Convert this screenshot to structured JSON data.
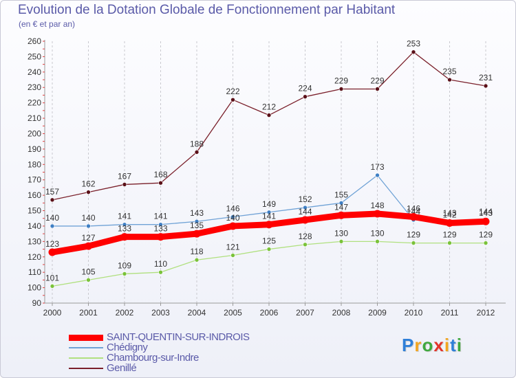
{
  "title": "Evolution de la Dotation Globale de Fonctionnement par Habitant",
  "subtitle": "(en € et par an)",
  "logo": {
    "text": "Proxiti",
    "letter_colors": [
      "#2f7fd8",
      "#f2a51f",
      "#3fa83f",
      "#e2342a",
      "#f2a51f",
      "#2f7fd8",
      "#3fa83f"
    ]
  },
  "chart_data": {
    "type": "line",
    "title": "Evolution de la Dotation Globale de Fonctionnement par Habitant",
    "subtitle": "(en € et par an)",
    "xlabel": "",
    "ylabel": "",
    "x": [
      "2000",
      "2001",
      "2002",
      "2003",
      "2004",
      "2005",
      "2006",
      "2007",
      "2008",
      "2009",
      "2010",
      "2011",
      "2012"
    ],
    "ylim": [
      90,
      260
    ],
    "yticks": [
      90,
      100,
      110,
      120,
      130,
      140,
      150,
      160,
      170,
      180,
      190,
      200,
      210,
      220,
      230,
      240,
      250,
      260
    ],
    "grid": "vertical dashed",
    "legend_position": "bottom-left",
    "series": [
      {
        "name": "Genillé",
        "color": "#7a1f2a",
        "marker": "#5a1018",
        "weight": "thin",
        "values": [
          157,
          162,
          167,
          168,
          188,
          222,
          212,
          224,
          229,
          229,
          253,
          235,
          231
        ]
      },
      {
        "name": "Chédigny",
        "color": "#6fa2d6",
        "marker": "#3f7fc4",
        "weight": "thin",
        "values": [
          140,
          140,
          141,
          141,
          143,
          146,
          149,
          152,
          155,
          173,
          144,
          143,
          144
        ]
      },
      {
        "name": "Chambourg-sur-Indre",
        "color": "#b0e07e",
        "marker": "#7ac23a",
        "weight": "thin",
        "values": [
          101,
          105,
          109,
          110,
          118,
          121,
          125,
          128,
          130,
          130,
          129,
          129,
          129
        ]
      },
      {
        "name": "SAINT-QUENTIN-SUR-INDROIS",
        "color": "#ff0000",
        "marker": "#ff0000",
        "weight": "thick",
        "values": [
          123,
          127,
          133,
          133,
          135,
          140,
          141,
          144,
          147,
          148,
          146,
          142,
          143
        ]
      }
    ],
    "legend_order": [
      "SAINT-QUENTIN-SUR-INDROIS",
      "Chédigny",
      "Chambourg-sur-Indre",
      "Genillé"
    ]
  }
}
